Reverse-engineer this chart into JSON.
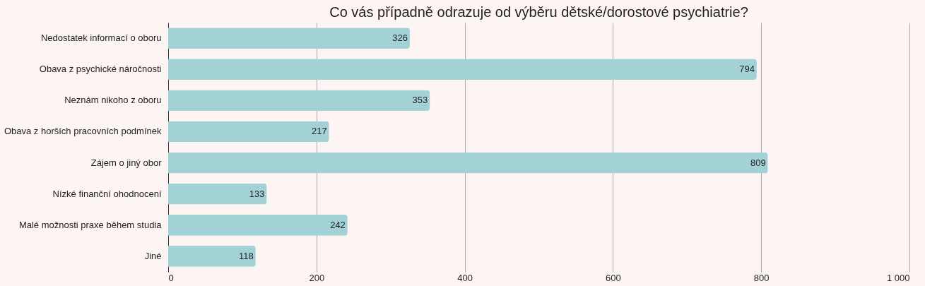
{
  "chart_data": {
    "type": "bar",
    "orientation": "horizontal",
    "title": "Co vás případně odrazuje od výběru dětské/dorostové psychiatrie?",
    "categories": [
      "Nedostatek informací o oboru",
      "Obava z psychické náročnosti",
      "Neznám nikoho z oboru",
      "Obava z horších pracovních podmínek",
      "Zájem o jiný obor",
      "Nízké finanční ohodnocení",
      "Malé možnosti praxe během studia",
      "Jiné"
    ],
    "values": [
      326,
      794,
      353,
      217,
      809,
      133,
      242,
      118
    ],
    "color": "#a3d2d6",
    "xlim": [
      0,
      1000
    ],
    "xticks": [
      0,
      200,
      400,
      600,
      800,
      {
        "value": 1000,
        "label": "1 000"
      }
    ],
    "grid": "x",
    "data_labels": true
  }
}
